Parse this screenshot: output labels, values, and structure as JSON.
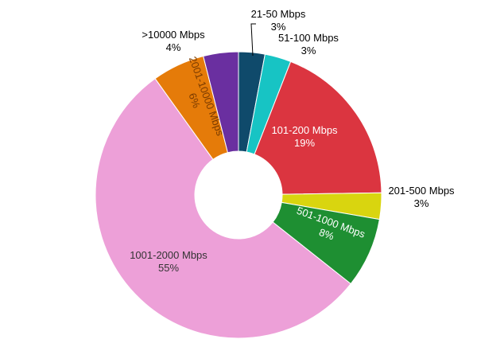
{
  "chart_data": {
    "type": "pie",
    "donut": true,
    "slices": [
      {
        "label": "21-50 Mbps",
        "pct_label": "3%",
        "value": 3,
        "color": "#0f4a6b"
      },
      {
        "label": "51-100 Mbps",
        "pct_label": "3%",
        "value": 3,
        "color": "#17c4c4"
      },
      {
        "label": "101-200 Mbps",
        "pct_label": "19%",
        "value": 19,
        "color": "#db3540"
      },
      {
        "label": "201-500 Mbps",
        "pct_label": "3%",
        "value": 3,
        "color": "#d9d50f"
      },
      {
        "label": "501-1000 Mbps",
        "pct_label": "8%",
        "value": 8,
        "color": "#1e8f32"
      },
      {
        "label": "1001-2000 Mbps",
        "pct_label": "55%",
        "value": 55,
        "color": "#eda0d8"
      },
      {
        "label": "2001-10000 Mbps",
        "pct_label": "6%",
        "value": 6,
        "color": "#e57b09"
      },
      {
        "label": ">10000 Mbps",
        "pct_label": "4%",
        "value": 4,
        "color": "#6a2fa0"
      }
    ]
  }
}
